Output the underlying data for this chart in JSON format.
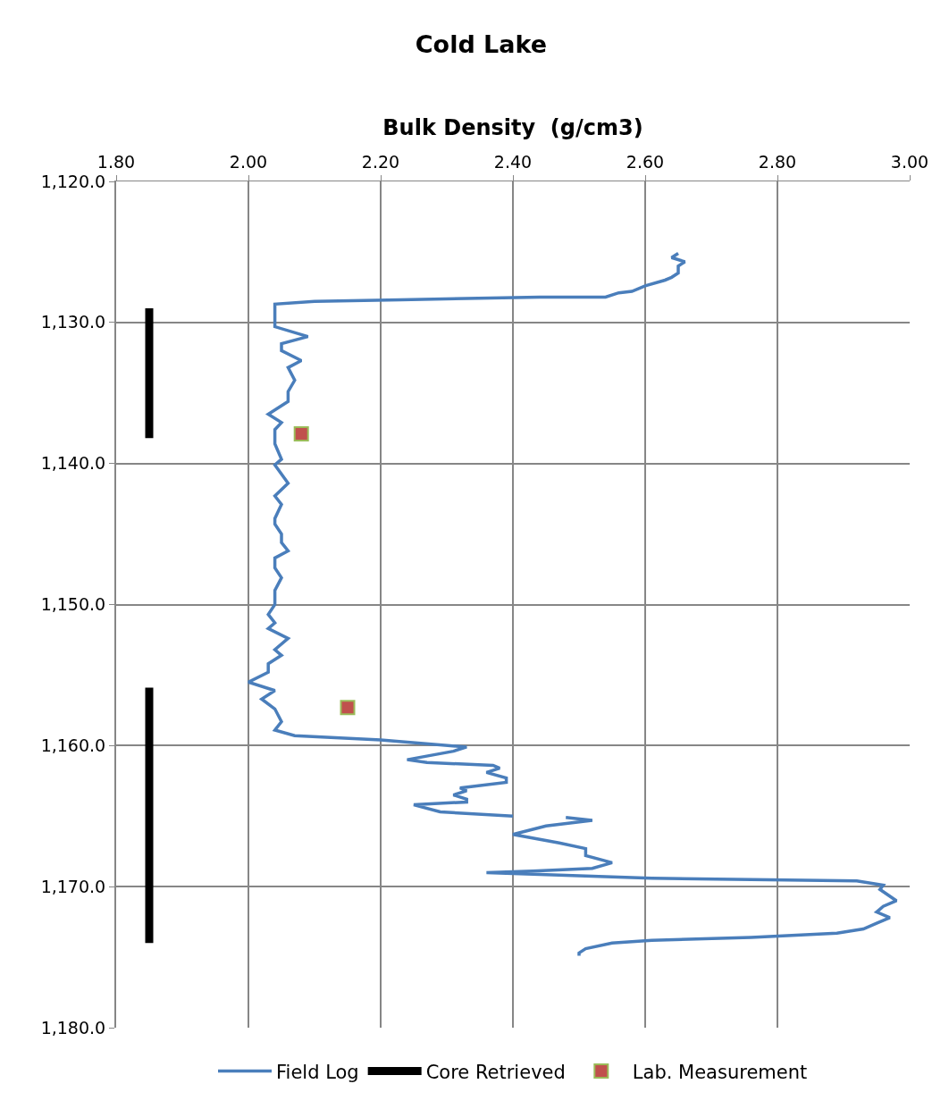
{
  "chart_data": {
    "type": "line",
    "title": "Cold Lake",
    "xlabel": "Bulk Density  (g/cm3)",
    "xlim": [
      1.8,
      3.0
    ],
    "xticks": [
      {
        "value": 1.8,
        "label": "1.80"
      },
      {
        "value": 2.0,
        "label": "2.00"
      },
      {
        "value": 2.2,
        "label": "2.20"
      },
      {
        "value": 2.4,
        "label": "2.40"
      },
      {
        "value": 2.6,
        "label": "2.60"
      },
      {
        "value": 2.8,
        "label": "2.80"
      },
      {
        "value": 3.0,
        "label": "3.00"
      }
    ],
    "ylim": [
      1180,
      1120
    ],
    "yticks": [
      {
        "value": 1120,
        "label": "1,120.0"
      },
      {
        "value": 1130,
        "label": "1,130.0"
      },
      {
        "value": 1140,
        "label": "1,140.0"
      },
      {
        "value": 1150,
        "label": "1,150.0"
      },
      {
        "value": 1160,
        "label": "1,160.0"
      },
      {
        "value": 1170,
        "label": "1,170.0"
      },
      {
        "value": 1180,
        "label": "1,180.0"
      }
    ],
    "grid": true,
    "legend": "bottom",
    "series": [
      {
        "name": "Field Log",
        "type": "line",
        "color": "#4a7ebb",
        "marker": "none",
        "x": [
          2.65,
          2.64,
          2.66,
          2.65,
          2.65,
          2.64,
          2.63,
          2.6,
          2.58,
          2.56,
          2.54,
          2.44,
          2.23,
          2.1,
          2.04,
          2.04,
          2.04,
          2.04,
          2.04,
          2.09,
          2.05,
          2.05,
          2.08,
          2.06,
          2.07,
          2.06,
          2.06,
          2.03,
          2.05,
          2.04,
          2.04,
          2.05,
          2.04,
          2.06,
          2.04,
          2.05,
          2.04,
          2.04,
          2.05,
          2.05,
          2.06,
          2.04,
          2.04,
          2.05,
          2.04,
          2.04,
          2.03,
          2.04,
          2.03,
          2.06,
          2.04,
          2.05,
          2.03,
          2.03,
          2.0,
          2.04,
          2.02,
          2.04,
          2.05,
          2.04,
          2.07,
          2.2,
          2.33,
          2.31,
          2.24,
          2.27,
          2.37,
          2.38,
          2.36,
          2.39,
          2.39,
          2.32,
          2.33,
          2.31,
          2.33,
          2.33,
          2.25,
          2.29,
          2.4,
          null,
          2.48,
          2.52,
          2.45,
          2.4,
          2.47,
          2.51,
          2.51,
          2.55,
          2.52,
          2.43,
          2.36,
          2.61,
          2.92,
          2.96,
          2.955,
          2.98,
          2.96,
          2.95,
          2.97,
          2.95,
          2.93,
          2.89,
          2.76,
          2.61,
          2.55,
          2.51,
          2.5,
          2.5
        ],
        "values": [
          1125.1,
          1125.4,
          1125.7,
          1126.0,
          1126.5,
          1126.8,
          1127.0,
          1127.4,
          1127.8,
          1127.9,
          1128.2,
          1128.2,
          1128.4,
          1128.5,
          1128.7,
          1129.0,
          1129.4,
          1129.9,
          1130.3,
          1131.0,
          1131.5,
          1132.0,
          1132.7,
          1133.2,
          1134.1,
          1134.9,
          1135.6,
          1136.5,
          1137.1,
          1137.6,
          1138.6,
          1139.7,
          1140.1,
          1141.4,
          1142.3,
          1142.9,
          1143.9,
          1144.3,
          1145.0,
          1145.6,
          1146.2,
          1146.7,
          1147.4,
          1148.1,
          1149.0,
          1150.0,
          1150.7,
          1151.3,
          1151.7,
          1152.4,
          1153.2,
          1153.6,
          1154.2,
          1154.8,
          1155.5,
          1156.1,
          1156.7,
          1157.4,
          1158.3,
          1158.9,
          1159.3,
          1159.6,
          1160.1,
          1160.4,
          1161.0,
          1161.2,
          1161.4,
          1161.6,
          1161.9,
          1162.3,
          1162.6,
          1163.0,
          1163.2,
          1163.5,
          1163.8,
          1164.0,
          1164.2,
          1164.7,
          1165.0,
          null,
          1165.1,
          1165.3,
          1165.7,
          1166.3,
          1166.9,
          1167.3,
          1167.8,
          1168.3,
          1168.7,
          1168.9,
          1169.0,
          1169.4,
          1169.6,
          1169.9,
          1170.2,
          1171.0,
          1171.4,
          1171.8,
          1172.2,
          1172.6,
          1173.0,
          1173.3,
          1173.6,
          1173.8,
          1174.0,
          1174.4,
          1174.7,
          1174.9
        ]
      },
      {
        "name": "Core Retrieved",
        "type": "line",
        "color": "#000000",
        "marker": "none",
        "x": [
          1.85,
          1.85
        ],
        "values": [
          1129.0,
          1138.2
        ]
      },
      {
        "color": "#000000",
        "marker": "none",
        "x": [
          1.85,
          1.85
        ],
        "values": [
          1155.9,
          1174.0
        ]
      },
      {
        "name": "Lab. Measurement",
        "type": "scatter",
        "color": "#c0504d",
        "marker": "square",
        "x": [
          2.08,
          2.15
        ],
        "values": [
          1137.9,
          1157.3
        ]
      }
    ]
  }
}
